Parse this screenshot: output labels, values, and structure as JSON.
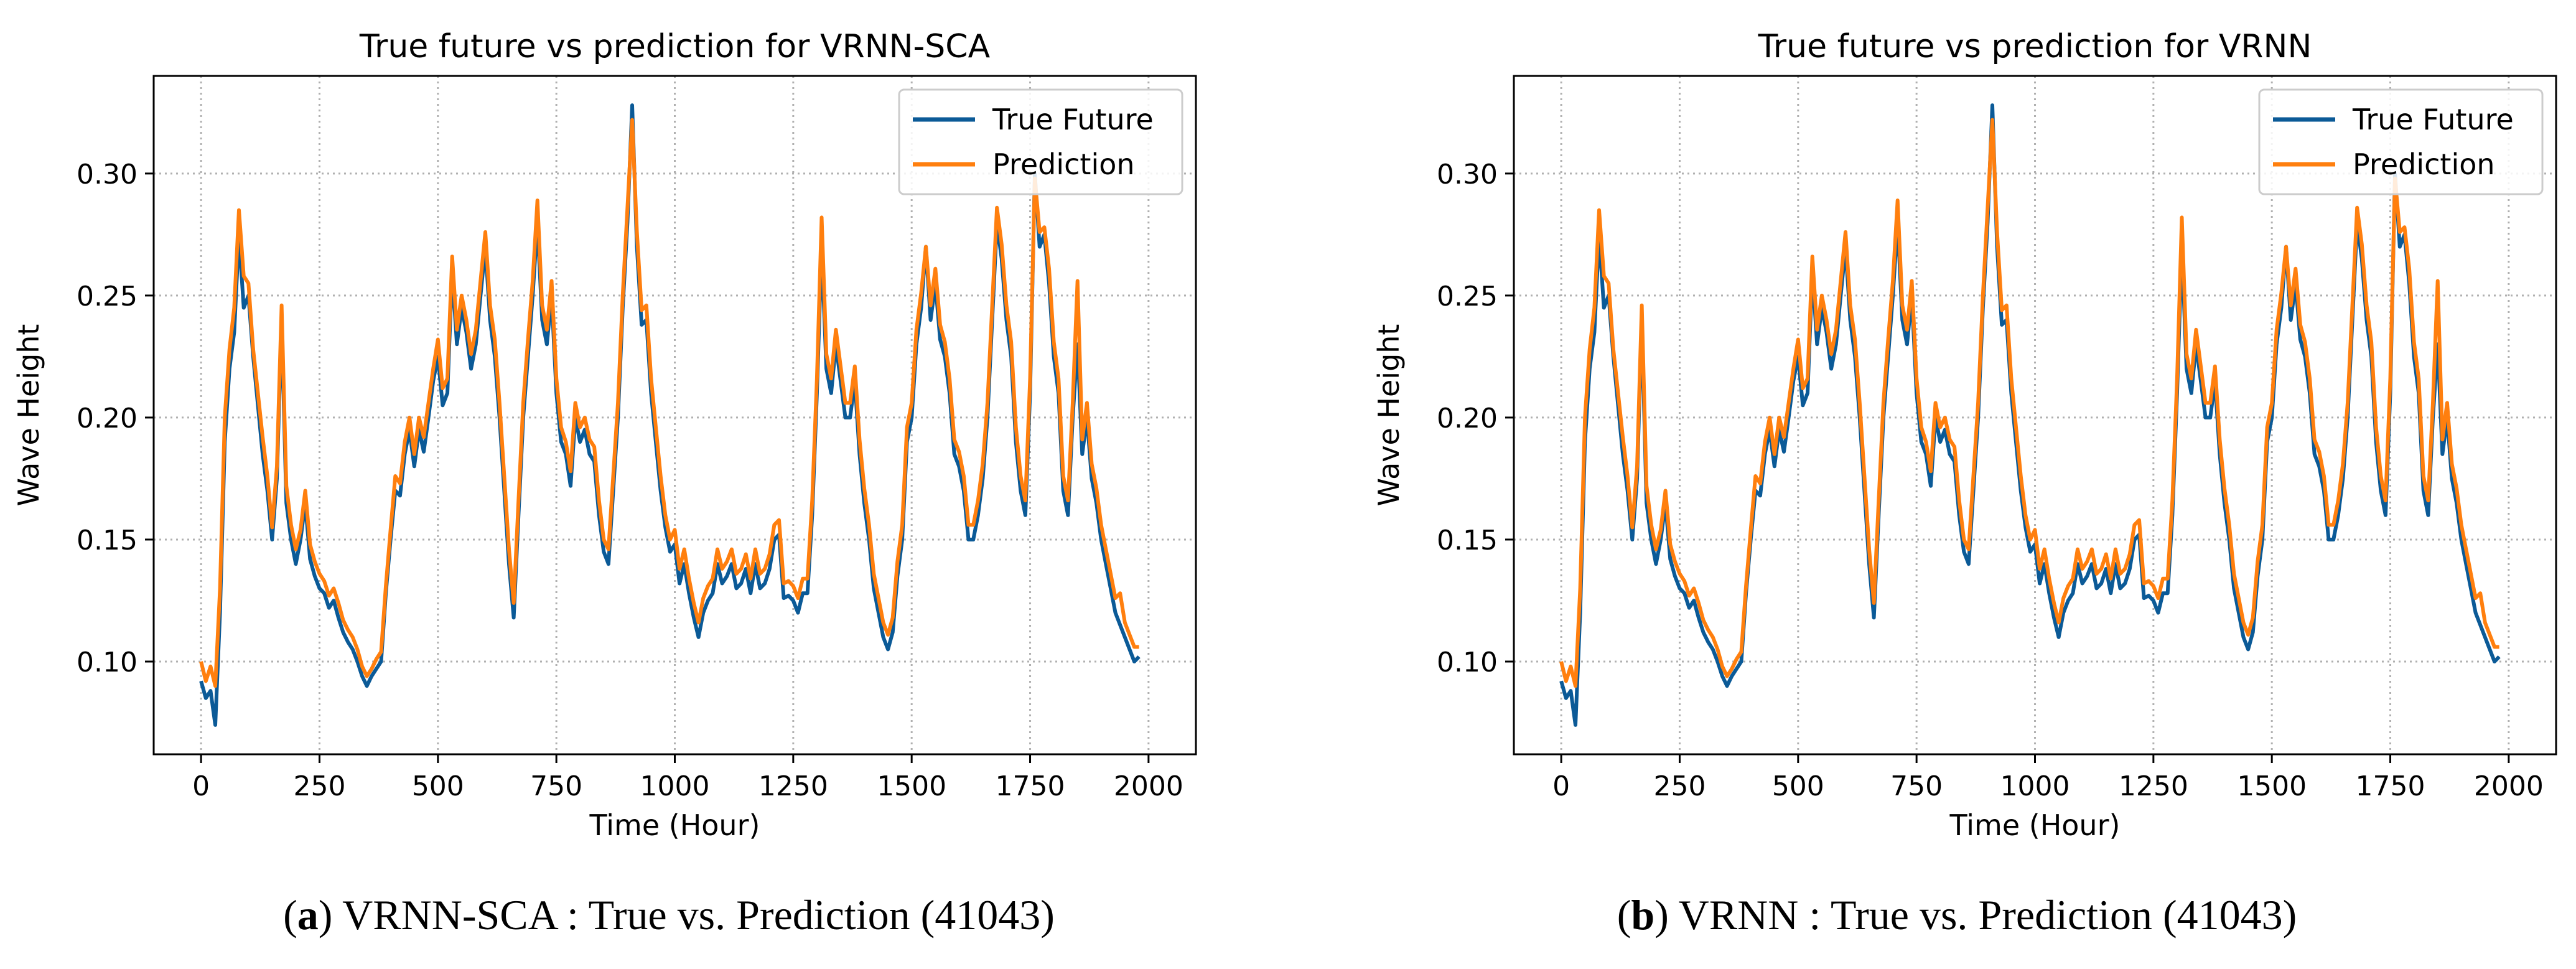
{
  "colors": {
    "true_future": "#0b5a97",
    "prediction": "#ff7f0e",
    "grid": "#b0b0b0",
    "axis": "#000000",
    "background": "#ffffff"
  },
  "captions": [
    {
      "label": "a",
      "text": "VRNN-SCA : True vs. Prediction (41043)"
    },
    {
      "label": "b",
      "text": "VRNN : True vs. Prediction (41043)"
    }
  ],
  "chart_data": [
    {
      "type": "line",
      "title": "True future vs prediction for VRNN-SCA",
      "xlabel": "Time (Hour)",
      "ylabel": "Wave Height",
      "xlim": [
        -100,
        2100
      ],
      "ylim": [
        0.062,
        0.34
      ],
      "xticks": [
        0,
        250,
        500,
        750,
        1000,
        1250,
        1500,
        1750,
        2000
      ],
      "xtick_labels": [
        "0",
        "250",
        "500",
        "750",
        "1000",
        "1250",
        "1500",
        "1750",
        "2000"
      ],
      "yticks": [
        0.1,
        0.15,
        0.2,
        0.25,
        0.3
      ],
      "ytick_labels": [
        "0.10",
        "0.15",
        "0.20",
        "0.25",
        "0.30"
      ],
      "grid": true,
      "legend_position": "top-right",
      "legend": [
        "True Future",
        "Prediction"
      ],
      "series": [
        {
          "name": "True Future",
          "values_ref": "shared_series.true_future"
        },
        {
          "name": "Prediction",
          "values_ref": "shared_series.prediction"
        }
      ]
    },
    {
      "type": "line",
      "title": "True future vs prediction for VRNN",
      "xlabel": "Time (Hour)",
      "ylabel": "Wave Height",
      "xlim": [
        -100,
        2100
      ],
      "ylim": [
        0.062,
        0.34
      ],
      "xticks": [
        0,
        250,
        500,
        750,
        1000,
        1250,
        1500,
        1750,
        2000
      ],
      "xtick_labels": [
        "0",
        "250",
        "500",
        "750",
        "1000",
        "1250",
        "1500",
        "1750",
        "2000"
      ],
      "yticks": [
        0.1,
        0.15,
        0.2,
        0.25,
        0.3
      ],
      "ytick_labels": [
        "0.10",
        "0.15",
        "0.20",
        "0.25",
        "0.30"
      ],
      "grid": true,
      "legend_position": "top-right",
      "legend": [
        "True Future",
        "Prediction"
      ],
      "series": [
        {
          "name": "True Future",
          "values_ref": "shared_series.true_future"
        },
        {
          "name": "Prediction",
          "values_ref": "shared_series.prediction"
        }
      ]
    }
  ],
  "shared_series": {
    "x": [
      0,
      10,
      20,
      30,
      40,
      50,
      60,
      70,
      80,
      90,
      100,
      110,
      120,
      130,
      140,
      150,
      160,
      170,
      180,
      190,
      200,
      210,
      220,
      230,
      240,
      250,
      260,
      270,
      280,
      290,
      300,
      310,
      320,
      330,
      340,
      350,
      360,
      370,
      380,
      390,
      400,
      410,
      420,
      430,
      440,
      450,
      460,
      470,
      480,
      490,
      500,
      510,
      520,
      530,
      540,
      550,
      560,
      570,
      580,
      590,
      600,
      610,
      620,
      630,
      640,
      650,
      660,
      670,
      680,
      690,
      700,
      710,
      720,
      730,
      740,
      750,
      760,
      770,
      780,
      790,
      800,
      810,
      820,
      830,
      840,
      850,
      860,
      870,
      880,
      890,
      900,
      910,
      920,
      930,
      940,
      950,
      960,
      970,
      980,
      990,
      1000,
      1010,
      1020,
      1030,
      1040,
      1050,
      1060,
      1070,
      1080,
      1090,
      1100,
      1110,
      1120,
      1130,
      1140,
      1150,
      1160,
      1170,
      1180,
      1190,
      1200,
      1210,
      1220,
      1230,
      1240,
      1250,
      1260,
      1270,
      1280,
      1290,
      1300,
      1310,
      1320,
      1330,
      1340,
      1350,
      1360,
      1370,
      1380,
      1390,
      1400,
      1410,
      1420,
      1430,
      1440,
      1450,
      1460,
      1470,
      1480,
      1490,
      1500,
      1510,
      1520,
      1530,
      1540,
      1550,
      1560,
      1570,
      1580,
      1590,
      1600,
      1610,
      1620,
      1630,
      1640,
      1650,
      1660,
      1670,
      1680,
      1690,
      1700,
      1710,
      1720,
      1730,
      1740,
      1750,
      1760,
      1770,
      1780,
      1790,
      1800,
      1810,
      1820,
      1830,
      1840,
      1850,
      1860,
      1870,
      1880,
      1890,
      1900,
      1910,
      1920,
      1930,
      1940,
      1950,
      1960,
      1970,
      1980,
      1990,
      2000
    ],
    "true_future": [
      0.092,
      0.085,
      0.088,
      0.074,
      0.12,
      0.19,
      0.22,
      0.235,
      0.275,
      0.245,
      0.25,
      0.225,
      0.205,
      0.185,
      0.17,
      0.15,
      0.175,
      0.24,
      0.165,
      0.15,
      0.14,
      0.15,
      0.165,
      0.142,
      0.135,
      0.13,
      0.128,
      0.122,
      0.125,
      0.118,
      0.112,
      0.108,
      0.105,
      0.1,
      0.094,
      0.09,
      0.094,
      0.097,
      0.1,
      0.128,
      0.15,
      0.17,
      0.168,
      0.185,
      0.195,
      0.18,
      0.195,
      0.186,
      0.2,
      0.215,
      0.225,
      0.205,
      0.21,
      0.26,
      0.23,
      0.245,
      0.235,
      0.22,
      0.23,
      0.25,
      0.27,
      0.24,
      0.225,
      0.2,
      0.17,
      0.14,
      0.118,
      0.16,
      0.2,
      0.225,
      0.25,
      0.28,
      0.24,
      0.23,
      0.25,
      0.21,
      0.19,
      0.185,
      0.172,
      0.2,
      0.19,
      0.195,
      0.185,
      0.182,
      0.16,
      0.145,
      0.14,
      0.17,
      0.2,
      0.245,
      0.28,
      0.328,
      0.27,
      0.238,
      0.24,
      0.21,
      0.19,
      0.17,
      0.155,
      0.145,
      0.148,
      0.132,
      0.14,
      0.128,
      0.118,
      0.11,
      0.12,
      0.125,
      0.128,
      0.14,
      0.132,
      0.135,
      0.14,
      0.13,
      0.132,
      0.138,
      0.128,
      0.14,
      0.13,
      0.132,
      0.138,
      0.15,
      0.152,
      0.126,
      0.127,
      0.125,
      0.12,
      0.128,
      0.128,
      0.16,
      0.21,
      0.27,
      0.22,
      0.21,
      0.23,
      0.215,
      0.2,
      0.2,
      0.215,
      0.185,
      0.165,
      0.15,
      0.13,
      0.12,
      0.11,
      0.105,
      0.112,
      0.135,
      0.15,
      0.19,
      0.2,
      0.23,
      0.245,
      0.27,
      0.24,
      0.255,
      0.232,
      0.225,
      0.21,
      0.185,
      0.18,
      0.17,
      0.15,
      0.15,
      0.16,
      0.175,
      0.2,
      0.24,
      0.28,
      0.265,
      0.24,
      0.225,
      0.19,
      0.17,
      0.16,
      0.21,
      0.3,
      0.27,
      0.275,
      0.255,
      0.225,
      0.21,
      0.17,
      0.16,
      0.2,
      0.23,
      0.185,
      0.2,
      0.175,
      0.165,
      0.15,
      0.14,
      0.13,
      0.12,
      0.115,
      0.11,
      0.105,
      0.1,
      0.102
    ],
    "prediction": [
      0.1,
      0.092,
      0.098,
      0.09,
      0.13,
      0.2,
      0.228,
      0.245,
      0.285,
      0.258,
      0.255,
      0.228,
      0.21,
      0.192,
      0.176,
      0.155,
      0.18,
      0.246,
      0.172,
      0.156,
      0.146,
      0.154,
      0.17,
      0.148,
      0.141,
      0.136,
      0.133,
      0.127,
      0.13,
      0.124,
      0.117,
      0.113,
      0.11,
      0.105,
      0.098,
      0.094,
      0.097,
      0.101,
      0.104,
      0.131,
      0.154,
      0.176,
      0.173,
      0.19,
      0.2,
      0.185,
      0.2,
      0.192,
      0.206,
      0.22,
      0.232,
      0.212,
      0.216,
      0.266,
      0.236,
      0.25,
      0.24,
      0.226,
      0.236,
      0.256,
      0.276,
      0.246,
      0.232,
      0.206,
      0.176,
      0.146,
      0.124,
      0.166,
      0.206,
      0.232,
      0.256,
      0.289,
      0.246,
      0.236,
      0.256,
      0.216,
      0.196,
      0.19,
      0.178,
      0.206,
      0.196,
      0.2,
      0.191,
      0.188,
      0.166,
      0.15,
      0.146,
      0.176,
      0.206,
      0.25,
      0.286,
      0.322,
      0.276,
      0.244,
      0.246,
      0.216,
      0.196,
      0.176,
      0.16,
      0.15,
      0.154,
      0.138,
      0.146,
      0.134,
      0.124,
      0.116,
      0.126,
      0.131,
      0.134,
      0.146,
      0.138,
      0.141,
      0.146,
      0.136,
      0.138,
      0.144,
      0.134,
      0.146,
      0.136,
      0.138,
      0.144,
      0.156,
      0.158,
      0.132,
      0.133,
      0.131,
      0.126,
      0.134,
      0.134,
      0.166,
      0.216,
      0.282,
      0.226,
      0.216,
      0.236,
      0.221,
      0.206,
      0.206,
      0.221,
      0.191,
      0.171,
      0.156,
      0.136,
      0.126,
      0.116,
      0.111,
      0.118,
      0.141,
      0.156,
      0.196,
      0.206,
      0.236,
      0.251,
      0.27,
      0.246,
      0.261,
      0.238,
      0.231,
      0.216,
      0.191,
      0.186,
      0.176,
      0.156,
      0.156,
      0.166,
      0.181,
      0.206,
      0.246,
      0.286,
      0.271,
      0.246,
      0.231,
      0.196,
      0.176,
      0.166,
      0.216,
      0.298,
      0.276,
      0.278,
      0.261,
      0.231,
      0.216,
      0.176,
      0.166,
      0.206,
      0.256,
      0.191,
      0.206,
      0.181,
      0.171,
      0.156,
      0.146,
      0.136,
      0.126,
      0.128,
      0.116,
      0.111,
      0.106,
      0.106
    ]
  }
}
